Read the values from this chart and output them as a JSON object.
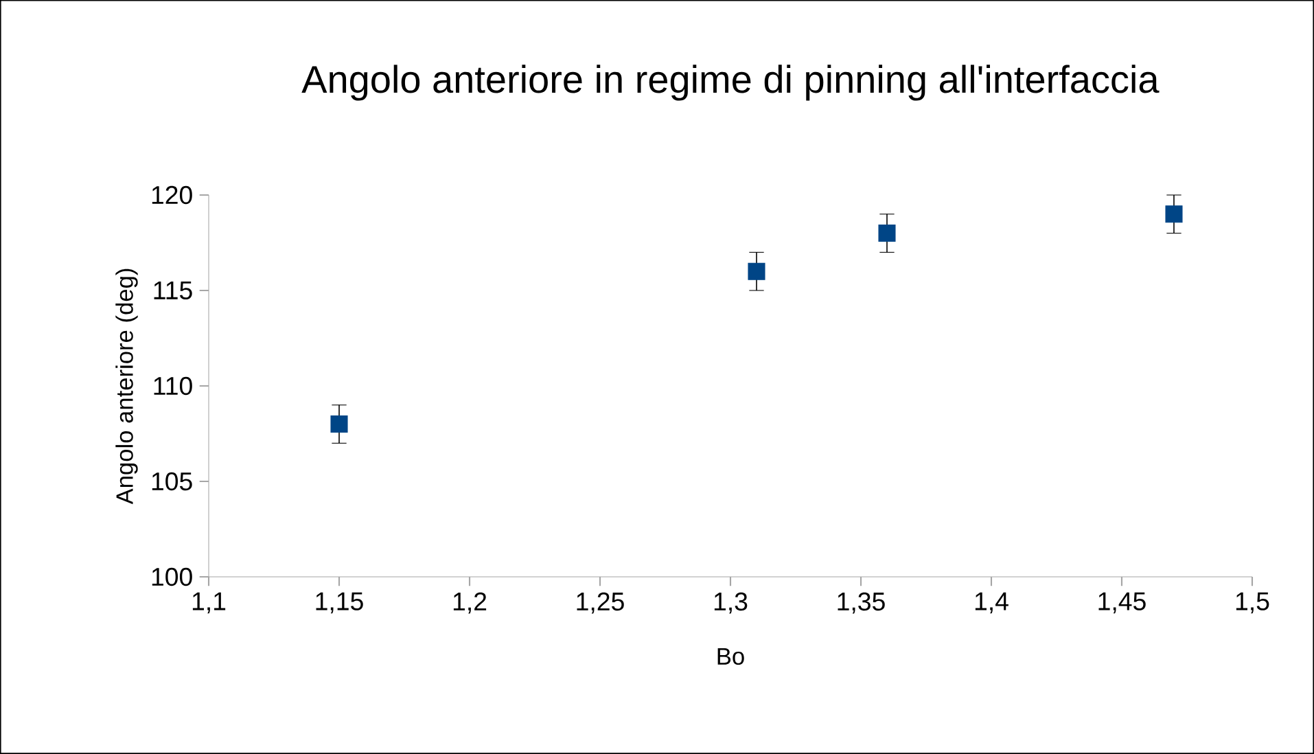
{
  "chart_data": {
    "type": "scatter",
    "title": "Angolo anteriore in regime di pinning all'interfaccia",
    "xlabel": "Bo",
    "ylabel": "Angolo anteriore (deg)",
    "x": [
      1.15,
      1.31,
      1.36,
      1.47
    ],
    "series": [
      {
        "color": "#004586",
        "values": [
          108,
          116,
          118,
          119
        ],
        "errors": [
          1,
          1,
          1,
          1
        ]
      }
    ],
    "marker": "square",
    "xlim": [
      1.1,
      1.5
    ],
    "ylim": [
      100,
      120
    ],
    "xticks": [
      {
        "value": 1.1,
        "label": "1,1"
      },
      {
        "value": 1.15,
        "label": "1,15"
      },
      {
        "value": 1.2,
        "label": "1,2"
      },
      {
        "value": 1.25,
        "label": "1,25"
      },
      {
        "value": 1.3,
        "label": "1,3"
      },
      {
        "value": 1.35,
        "label": "1,35"
      },
      {
        "value": 1.4,
        "label": "1,4"
      },
      {
        "value": 1.45,
        "label": "1,45"
      },
      {
        "value": 1.5,
        "label": "1,5"
      }
    ],
    "yticks": [
      100,
      105,
      110,
      115,
      120
    ]
  }
}
